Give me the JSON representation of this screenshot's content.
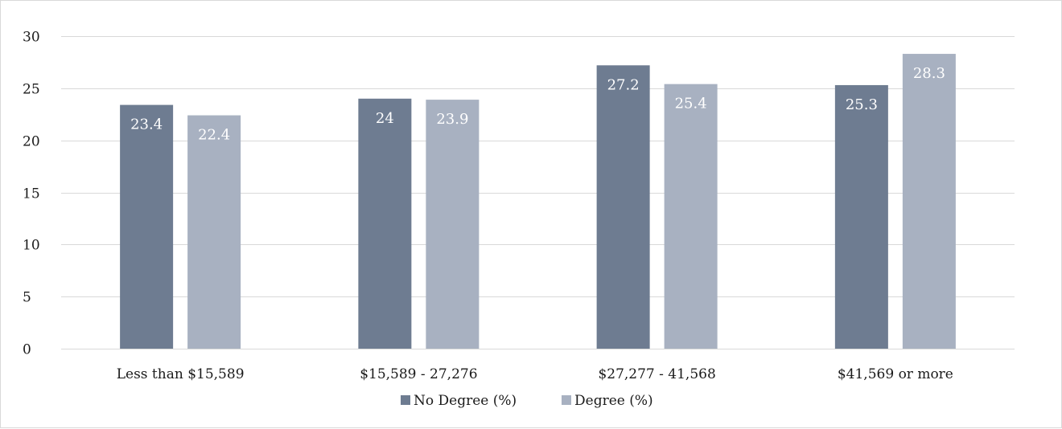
{
  "chart_data": {
    "type": "bar",
    "categories": [
      "Less than $15,589",
      "$15,589 - 27,276",
      "$27,277 - 41,568",
      "$41,569 or more"
    ],
    "series": [
      {
        "name": "No Degree (%)",
        "values": [
          23.4,
          24,
          27.2,
          25.3
        ],
        "color": "#6e7c91"
      },
      {
        "name": "Degree (%)",
        "values": [
          22.4,
          23.9,
          25.4,
          28.3
        ],
        "color": "#a8b1c1"
      }
    ],
    "title": "",
    "xlabel": "",
    "ylabel": "",
    "ylim": [
      0,
      30
    ],
    "yticks": [
      0,
      5,
      10,
      15,
      20,
      25,
      30
    ],
    "grid": true,
    "legend_position": "bottom",
    "data_labels": true
  }
}
